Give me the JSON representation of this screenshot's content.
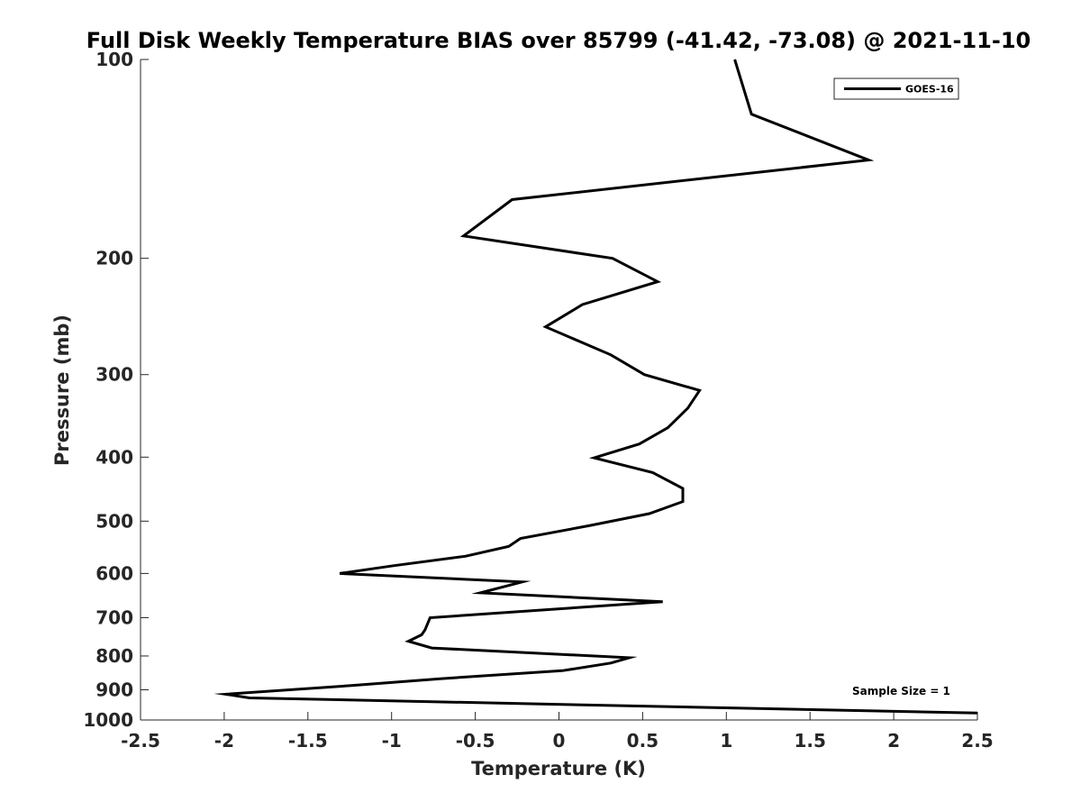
{
  "chart_data": {
    "type": "line",
    "title": "Full Disk Weekly Temperature BIAS over 85799 (-41.42, -73.08) @ 2021-11-10",
    "xlabel": "Temperature (K)",
    "ylabel": "Pressure (mb)",
    "xlim": [
      -2.5,
      2.5
    ],
    "ylim": [
      100,
      1000
    ],
    "yscale": "log",
    "yreversed": true,
    "xticks": [
      -2.5,
      -2,
      -1.5,
      -1,
      -0.5,
      0,
      0.5,
      1,
      1.5,
      2,
      2.5
    ],
    "xtick_labels": [
      "-2.5",
      "-2",
      "-1.5",
      "-1",
      "-0.5",
      "0",
      "0.5",
      "1",
      "1.5",
      "2",
      "2.5"
    ],
    "yticks": [
      100,
      200,
      300,
      400,
      500,
      600,
      700,
      800,
      900,
      1000
    ],
    "ytick_labels": [
      "100",
      "200",
      "300",
      "400",
      "500",
      "600",
      "700",
      "800",
      "900",
      "1000"
    ],
    "legend": {
      "location": "top-right",
      "entries": [
        "GOES-16"
      ]
    },
    "annotation": "Sample Size = 1",
    "series": [
      {
        "name": "GOES-16",
        "color": "#000000",
        "points": [
          [
            1.05,
            100
          ],
          [
            1.15,
            121
          ],
          [
            1.85,
            142
          ],
          [
            -0.28,
            163
          ],
          [
            -0.57,
            185
          ],
          [
            0.32,
            200
          ],
          [
            0.59,
            217
          ],
          [
            0.14,
            235
          ],
          [
            -0.08,
            254
          ],
          [
            0.31,
            280
          ],
          [
            0.51,
            300
          ],
          [
            0.84,
            317
          ],
          [
            0.77,
            337
          ],
          [
            0.65,
            361
          ],
          [
            0.48,
            382
          ],
          [
            0.21,
            401
          ],
          [
            0.56,
            422
          ],
          [
            0.74,
            446
          ],
          [
            0.74,
            467
          ],
          [
            0.54,
            487
          ],
          [
            0.18,
            508
          ],
          [
            -0.23,
            531
          ],
          [
            -0.3,
            546
          ],
          [
            -0.56,
            565
          ],
          [
            -0.99,
            584
          ],
          [
            -1.31,
            600
          ],
          [
            -0.22,
            618
          ],
          [
            -0.47,
            642
          ],
          [
            0.62,
            662
          ],
          [
            -0.77,
            700
          ],
          [
            -0.8,
            730
          ],
          [
            -0.82,
            743
          ],
          [
            -0.9,
            760
          ],
          [
            -0.76,
            778
          ],
          [
            0.42,
            805
          ],
          [
            0.31,
            820
          ],
          [
            0.02,
            842
          ],
          [
            -0.71,
            866
          ],
          [
            -1.24,
            887
          ],
          [
            -1.99,
            914
          ],
          [
            -1.85,
            926
          ],
          [
            2.5,
            976
          ]
        ]
      }
    ]
  }
}
